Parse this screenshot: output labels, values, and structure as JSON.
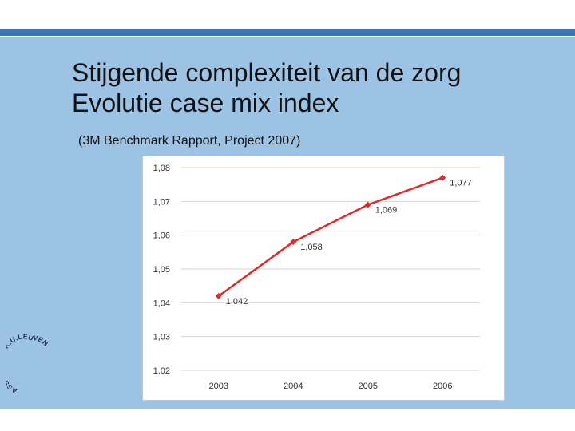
{
  "slide": {
    "title_line1": "Stijgende complexiteit  van de zorg",
    "title_line2": "Evolutie case mix index",
    "subtitle": "(3M Benchmark Rapport, Project 2007)",
    "logo_text": "ASSOCIATIE K.U.LEUVEN"
  },
  "colors": {
    "slide_background": "#9cc3e3",
    "top_bar": "#3d78b5",
    "series_line": "#e02a2a"
  },
  "chart_data": {
    "type": "line",
    "x": [
      "2003",
      "2004",
      "2005",
      "2006"
    ],
    "series": [
      {
        "values": [
          1.042,
          1.058,
          1.069,
          1.077
        ]
      }
    ],
    "data_labels": [
      "1,042",
      "1,058",
      "1,069",
      "1,077"
    ],
    "y_ticks": [
      1.02,
      1.03,
      1.04,
      1.05,
      1.06,
      1.07,
      1.08
    ],
    "y_tick_labels": [
      "1,02",
      "1,03",
      "1,04",
      "1,05",
      "1,06",
      "1,07",
      "1,08"
    ],
    "ylim": [
      1.02,
      1.08
    ],
    "grid": "horizontal",
    "legend": "none"
  }
}
